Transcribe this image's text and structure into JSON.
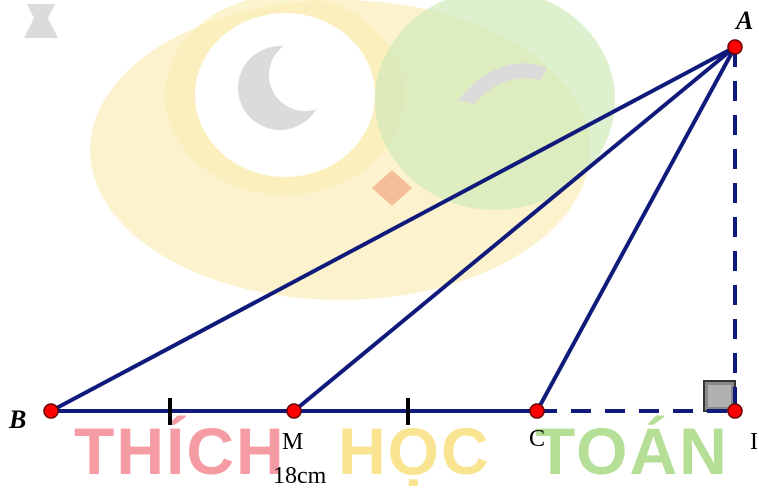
{
  "watermark": {
    "word1": "THÍCH",
    "word2": "HỌC",
    "word3": "TOÁN",
    "colors": {
      "red": "#ee4b5a",
      "yellow": "#f4cf38",
      "green": "#79c442",
      "gray": "#d9d9d9"
    }
  },
  "diagram": {
    "points": [
      {
        "id": "A",
        "label": "A",
        "style": "italic-bold"
      },
      {
        "id": "B",
        "label": "B",
        "style": "italic-bold"
      },
      {
        "id": "M",
        "label": "M",
        "style": "upright"
      },
      {
        "id": "C",
        "label": "C",
        "style": "upright"
      },
      {
        "id": "I",
        "label": "I",
        "style": "upright"
      }
    ],
    "solid_segments": [
      "AB",
      "AM",
      "AC",
      "BC"
    ],
    "dashed_segments": [
      "AI",
      "CI"
    ],
    "equal_tick_segments": [
      "BM",
      "MC"
    ],
    "right_angle_at": "I",
    "measure_label": "18cm",
    "colors": {
      "line": "#0f1a7a",
      "point_fill": "#ff0000",
      "point_stroke": "#6a0000",
      "right_angle_fill": "#7f7f7f"
    }
  }
}
